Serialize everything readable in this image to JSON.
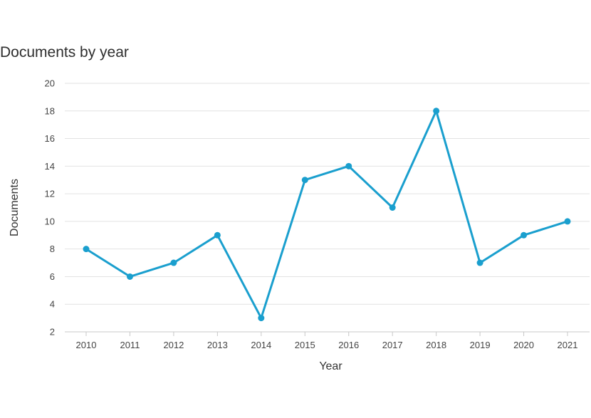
{
  "chart_data": {
    "type": "line",
    "title": "Documents by year",
    "xlabel": "Year",
    "ylabel": "Documents",
    "categories": [
      "2010",
      "2011",
      "2012",
      "2013",
      "2014",
      "2015",
      "2016",
      "2017",
      "2018",
      "2019",
      "2020",
      "2021"
    ],
    "series": [
      {
        "values": [
          8,
          6,
          7,
          9,
          3,
          13,
          14,
          11,
          18,
          7,
          9,
          10
        ]
      }
    ],
    "yticks": [
      "2",
      "4",
      "6",
      "8",
      "10",
      "12",
      "14",
      "16",
      "18",
      "20"
    ],
    "ylim": [
      2,
      20
    ],
    "grid": true,
    "legend": "none",
    "colors": {
      "line": "#1a9fce",
      "grid": "#e2e2e2",
      "axis": "#c8c8c8"
    }
  }
}
